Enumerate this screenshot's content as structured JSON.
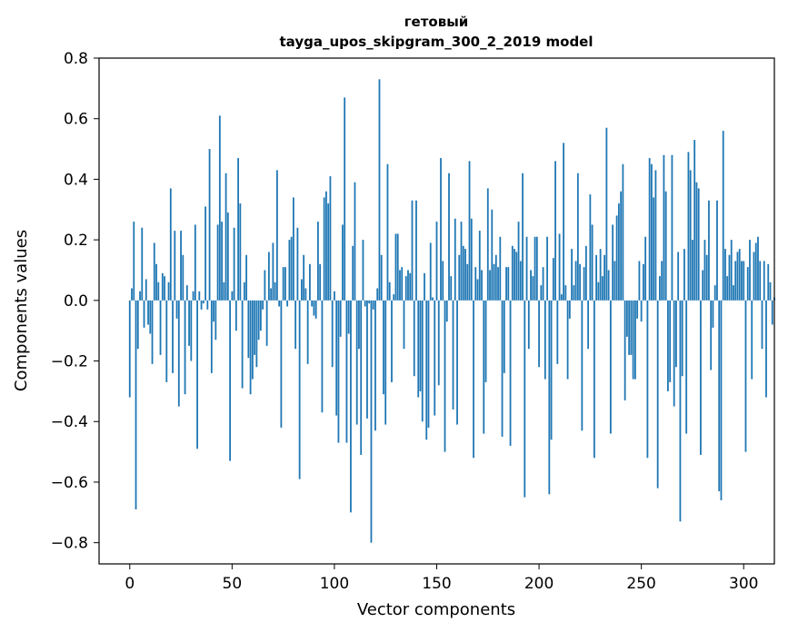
{
  "chart_data": {
    "type": "bar",
    "title": "гетовый",
    "subtitle": "tayga_upos_skipgram_300_2_2019 model",
    "xlabel": "Vector components",
    "ylabel": "Components values",
    "xlim": [
      -15,
      315
    ],
    "ylim": [
      -0.87,
      0.8
    ],
    "x_ticks": [
      0,
      50,
      100,
      150,
      200,
      250,
      300
    ],
    "x_tick_labels": [
      "0",
      "50",
      "100",
      "150",
      "200",
      "250",
      "300"
    ],
    "y_ticks": [
      -0.8,
      -0.6,
      -0.4,
      -0.2,
      0.0,
      0.2,
      0.4,
      0.6,
      0.8
    ],
    "y_tick_labels": [
      "−0.8",
      "−0.6",
      "−0.4",
      "−0.2",
      "0.0",
      "0.2",
      "0.4",
      "0.6",
      "0.8"
    ],
    "bar_color": "#1f77b4",
    "grid": false,
    "values": [
      -0.32,
      0.04,
      0.26,
      -0.69,
      -0.16,
      0.03,
      0.24,
      -0.09,
      0.07,
      -0.08,
      -0.11,
      -0.21,
      0.19,
      0.12,
      0.06,
      -0.18,
      0.09,
      0.08,
      -0.27,
      0.06,
      0.37,
      -0.24,
      0.23,
      -0.06,
      -0.35,
      0.23,
      0.15,
      -0.31,
      0.05,
      -0.15,
      -0.2,
      0.03,
      0.25,
      -0.49,
      0.03,
      -0.03,
      -0.01,
      0.31,
      -0.03,
      0.5,
      -0.24,
      -0.07,
      -0.13,
      0.25,
      0.61,
      0.26,
      0.06,
      0.42,
      0.29,
      -0.53,
      0.03,
      0.24,
      -0.1,
      0.47,
      0.32,
      -0.29,
      0.06,
      0.15,
      -0.19,
      -0.31,
      -0.26,
      -0.18,
      -0.22,
      -0.13,
      -0.1,
      -0.03,
      0.1,
      -0.15,
      0.16,
      0.04,
      0.19,
      0.06,
      0.43,
      -0.02,
      -0.42,
      0.11,
      0.11,
      -0.02,
      0.2,
      0.21,
      0.34,
      -0.16,
      0.24,
      -0.59,
      0.07,
      0.15,
      0.04,
      -0.21,
      0.12,
      -0.02,
      -0.05,
      -0.06,
      0.26,
      0.12,
      -0.37,
      0.34,
      0.36,
      0.32,
      0.41,
      -0.22,
      0.03,
      -0.38,
      -0.47,
      -0.12,
      0.25,
      0.67,
      -0.47,
      -0.11,
      -0.7,
      0.18,
      0.39,
      -0.41,
      -0.16,
      -0.51,
      0.2,
      -0.02,
      -0.39,
      -0.01,
      -0.8,
      -0.03,
      -0.43,
      0.04,
      0.73,
      0.15,
      -0.31,
      -0.41,
      0.45,
      0.06,
      -0.27,
      0.02,
      0.22,
      0.22,
      0.1,
      0.11,
      -0.16,
      0.08,
      0.1,
      0.09,
      0.33,
      -0.25,
      0.33,
      -0.32,
      -0.3,
      -0.4,
      0.09,
      -0.46,
      -0.42,
      0.19,
      0.01,
      -0.38,
      0.26,
      -0.28,
      0.47,
      0.13,
      -0.5,
      -0.07,
      0.42,
      0.08,
      -0.36,
      0.27,
      -0.41,
      0.15,
      0.26,
      0.18,
      0.17,
      0.12,
      0.46,
      0.27,
      -0.52,
      0.11,
      0.07,
      0.23,
      0.1,
      -0.44,
      -0.27,
      0.37,
      0.1,
      0.3,
      0.12,
      0.15,
      0.11,
      0.21,
      -0.45,
      -0.24,
      0.11,
      0.11,
      -0.48,
      0.18,
      0.17,
      0.16,
      0.26,
      0.13,
      0.42,
      -0.65,
      0.21,
      -0.16,
      0.1,
      0.08,
      0.21,
      0.21,
      -0.22,
      0.05,
      0.11,
      -0.26,
      0.21,
      -0.64,
      -0.46,
      0.14,
      0.46,
      -0.21,
      0.22,
      0.02,
      0.52,
      0.05,
      -0.26,
      -0.06,
      0.17,
      0.05,
      0.13,
      0.42,
      0.12,
      -0.43,
      0.11,
      0.18,
      -0.16,
      0.35,
      0.25,
      -0.52,
      0.15,
      0.06,
      0.17,
      0.08,
      0.15,
      0.57,
      0.1,
      -0.44,
      0.25,
      0.13,
      0.28,
      0.32,
      0.36,
      0.45,
      -0.33,
      -0.12,
      -0.18,
      -0.18,
      -0.26,
      -0.26,
      -0.06,
      0.13,
      -0.07,
      0.12,
      0.21,
      -0.52,
      0.47,
      0.45,
      0.34,
      0.43,
      -0.62,
      0.08,
      0.13,
      0.48,
      0.36,
      -0.3,
      -0.27,
      0.48,
      -0.35,
      -0.22,
      0.16,
      -0.73,
      -0.25,
      0.17,
      -0.44,
      0.49,
      0.43,
      0.2,
      0.53,
      0.39,
      0.37,
      -0.51,
      0.1,
      0.2,
      0.15,
      0.33,
      -0.23,
      -0.09,
      0.05,
      0.33,
      -0.63,
      -0.66,
      0.56,
      0.17,
      0.08,
      0.15,
      0.2,
      0.05,
      0.13,
      0.16,
      0.17,
      0.13,
      0.13,
      -0.5,
      0.11,
      0.2,
      -0.26,
      0.16,
      0.19,
      0.21,
      0.13,
      -0.16,
      0.13,
      -0.32,
      0.12,
      0.06,
      -0.08,
      0.01
    ]
  }
}
